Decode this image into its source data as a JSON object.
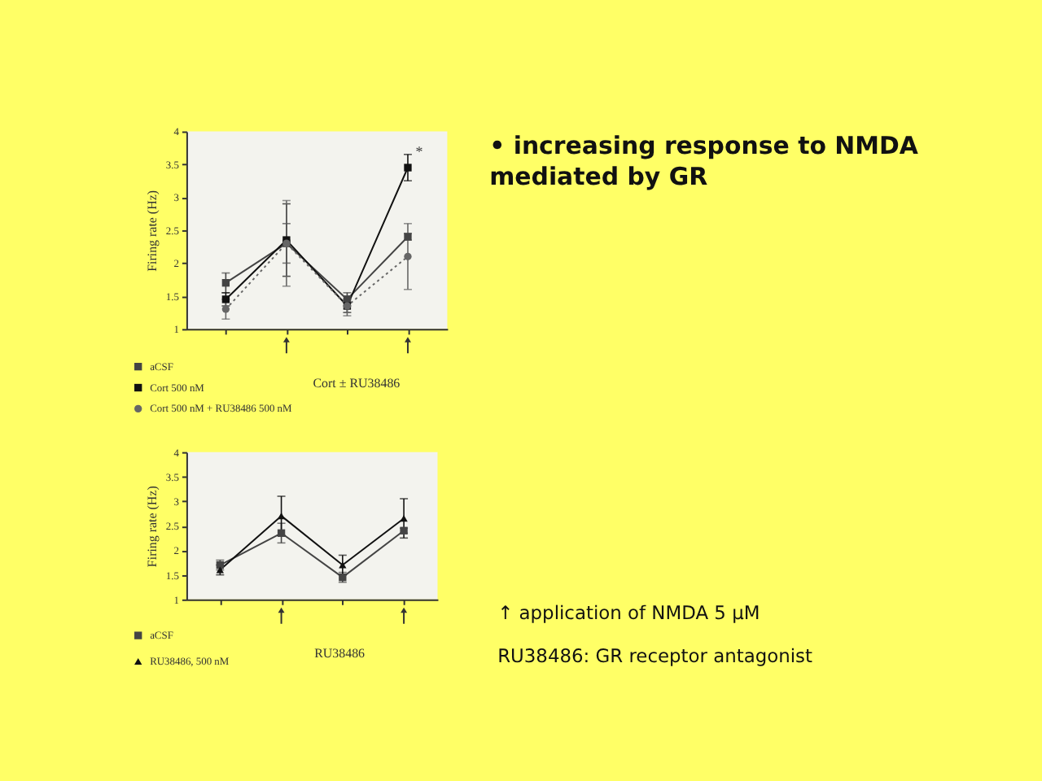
{
  "chart_data": [
    {
      "type": "line",
      "categories": [
        null,
        null,
        null,
        null
      ],
      "ylabel": "Firing rate (Hz)",
      "ylim": [
        1,
        4
      ],
      "yticks": [
        1,
        1.5,
        2,
        2.5,
        3,
        3.5,
        4
      ],
      "tick_labels": "y",
      "legend": "bottom left",
      "line_style": "solid",
      "series": [
        {
          "name": "aCSF",
          "color": "#444444",
          "marker": "square",
          "values": [
            1.7,
            2.3,
            1.45,
            2.4
          ],
          "errors": [
            0.15,
            0.3,
            0.1,
            0.05
          ]
        },
        {
          "name": "Cort 500 nM",
          "color": "#111111",
          "marker": "square",
          "values": [
            1.45,
            2.35,
            1.35,
            3.45
          ],
          "errors": [
            0.1,
            0.55,
            0.1,
            0.2
          ]
        },
        {
          "name": "Cort 500 nM + RU38486 500 nM",
          "color": "#666666",
          "marker": "circle",
          "line_style": "dotted",
          "values": [
            1.3,
            2.3,
            1.35,
            2.1
          ],
          "errors": [
            0.15,
            0.65,
            0.15,
            0.5
          ]
        }
      ],
      "annotations": [
        {
          "text": "*",
          "y": 3.7
        },
        "Cort ± RU38486"
      ]
    },
    {
      "type": "line",
      "categories": [
        null,
        null,
        null,
        null
      ],
      "ylabel": "Firing rate (Hz)",
      "ylim": [
        1,
        4
      ],
      "yticks": [
        1,
        1.5,
        2,
        2.5,
        3,
        3.5,
        4
      ],
      "tick_labels": "y",
      "legend": "bottom left",
      "line_style": "solid",
      "series": [
        {
          "name": "aCSF",
          "color": "#444444",
          "marker": "square",
          "values": [
            1.7,
            2.35,
            1.45,
            2.4
          ],
          "errors": [
            0.1,
            0.2,
            0.1,
            0.05
          ]
        },
        {
          "name": "RU38486, 500 nM",
          "color": "#111111",
          "marker": "triangle",
          "values": [
            1.6,
            2.7,
            1.7,
            2.65
          ],
          "errors": [
            0.1,
            0.4,
            0.2,
            0.4
          ]
        }
      ],
      "annotations": [
        "RU38486"
      ]
    },
    {
      "type": "other",
      "annotations": [
        "• increasing response to NMDA mediated by GR",
        "↑ application of NMDA 5 µM",
        "RU38486: GR receptor antagonist"
      ]
    }
  ]
}
